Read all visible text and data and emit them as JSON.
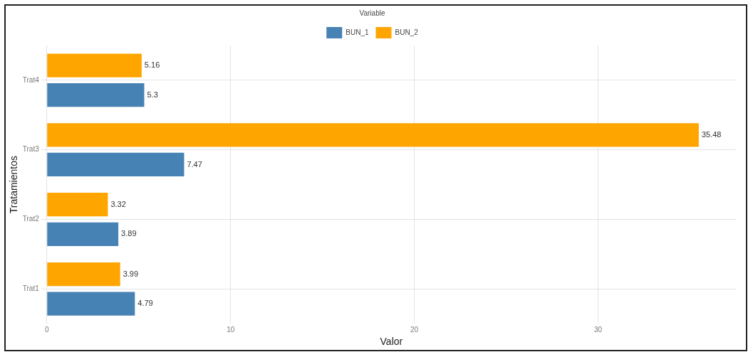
{
  "chart_data": {
    "type": "bar",
    "orientation": "horizontal",
    "xlabel": "Valor",
    "ylabel": "Tratamientos",
    "legend_title": "Variable",
    "legend": "top",
    "categories": [
      "Trat4",
      "Trat3",
      "Trat2",
      "Trat1"
    ],
    "series": [
      {
        "name": "BUN_1",
        "color": "#4682b4",
        "values": [
          5.3,
          7.47,
          3.89,
          4.79
        ]
      },
      {
        "name": "BUN_2",
        "color": "#ffa500",
        "values": [
          5.16,
          35.48,
          3.32,
          3.99
        ]
      }
    ],
    "data_labels": true,
    "xlim": [
      0,
      37.5
    ],
    "xticks": [
      0,
      10,
      20,
      30
    ],
    "grid": true
  }
}
